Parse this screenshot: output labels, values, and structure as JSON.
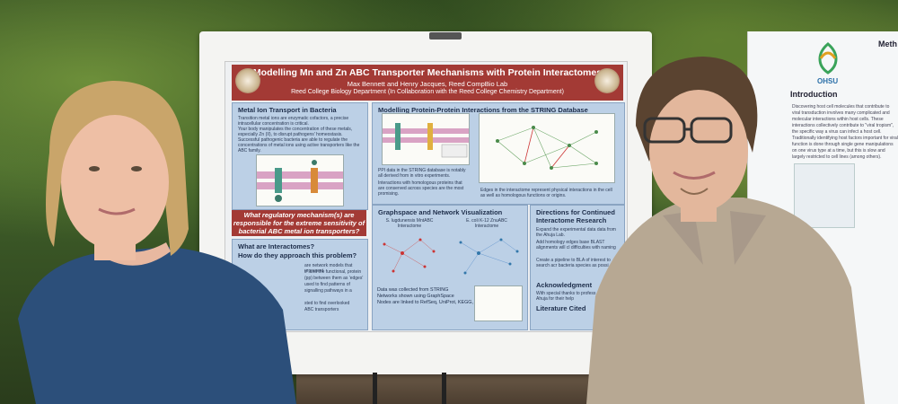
{
  "poster": {
    "title": "Modelling Mn and Zn ABC Transporter Mechanisms with Protein Interactomes",
    "authors": "Max Bennett and Henry Jacques, Reed CompBio Lab",
    "department": "Reed College Biology Department (In Collaboration with the Reed College Chemistry Department)",
    "sections": {
      "metal_ion": {
        "title": "Metal Ion Transport in Bacteria",
        "bullets": [
          "Transition metal ions are enzymatic cofactors, a precise intracellular concentration is critical.",
          "Your body manipulates the concentration of these metals, especially Zn (II), to disrupt pathogens' homeostasis.",
          "Successful pathogenic bacteria are able to regulate the concentrations of metal ions using active transporters like the ABC family."
        ]
      },
      "question": "What regulatory mechanism(s) are responsible for the extreme sensitivity of bacterial ABC metal ion transporters?",
      "interactomes": {
        "title": "What are Interactomes?",
        "subtitle": "How do they approach this problem?",
        "text_lines": [
          "are network models that represent",
          "s\" and the functional, protein",
          "(pp) between them as 'edges'",
          "used to find patterns of",
          "signalling pathways in a",
          "",
          "sted to find overlooked",
          "ABC transporters"
        ]
      },
      "modelling": {
        "title": "Modelling Protein-Protein Interactions from the STRING Database",
        "bullets": [
          "PPI data in the STRING database is notably all derived from in vitro experiments.",
          "Interactions with homologous proteins that are conserved across species are the most promising."
        ],
        "caption": "Edges in the interactome represent physical interactions in the cell as well as homologous functions or origins."
      },
      "graphspace": {
        "title": "Graphspace and Network Visualization",
        "net_labels": [
          "S. lugdunensis MntABC Interactome",
          "E. coli K-12 ZnuABC Interactome"
        ],
        "bullets": [
          "Data was collected from STRING",
          "Networks shown using GraphSpace",
          "Nodes are linked to RefSeq, UniProt, KEGG, and AlphaFold."
        ]
      },
      "directions": {
        "title": "Directions for Continued Interactome Research",
        "bullets": [
          "Expand the experimental data data from the Ahuja Lab.",
          "Add homology edges base BLAST alignments will cl difficulties with naming",
          "Create a pipeline to BLA of interest to search acr bacteria species as possi"
        ]
      },
      "acknowledgments": {
        "title": "Acknowledgment",
        "text": "With special thanks to profess and Shivani Ahuja for their help"
      },
      "literature": {
        "title": "Literature Cited"
      }
    }
  },
  "ohsu_poster": {
    "logo_text": "OHSU",
    "heading_right": "Meth",
    "intro_title": "Introduction",
    "intro_text": "Discovering host cell molecules that contribute to viral transduction involves many complicated and molecular interactions within host cells. These interactions collectively contribute to \"viral tropism\", the specific way a virus can infect a host cell. Traditionally identifying host factors important for viral function is done through single gene manipulations on one virus type at a time, but this is slow and largely restricted to cell lines (among others)."
  },
  "colors": {
    "poster_banner": "#a33a35",
    "panel_blue": "#bcd0e6",
    "shirt_left": "#2c4f7a",
    "shirt_right": "#b7a893"
  }
}
